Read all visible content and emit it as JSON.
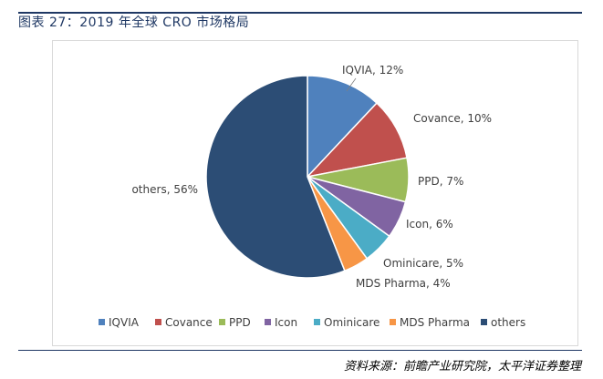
{
  "header": {
    "title": "图表 27：2019 年全球 CRO 市场格局"
  },
  "footer": {
    "source": "资料来源：前瞻产业研究院，太平洋证券整理"
  },
  "chart_data": {
    "type": "pie",
    "title": "",
    "slices": [
      {
        "name": "IQVIA",
        "value": 12,
        "label": "IQVIA, 12%",
        "color": "#4F81BD"
      },
      {
        "name": "Covance",
        "value": 10,
        "label": "Covance, 10%",
        "color": "#C0504D"
      },
      {
        "name": "PPD",
        "value": 7,
        "label": "PPD, 7%",
        "color": "#9BBB59"
      },
      {
        "name": "Icon",
        "value": 6,
        "label": "Icon, 6%",
        "color": "#8064A2"
      },
      {
        "name": "Ominicare",
        "value": 5,
        "label": "Ominicare, 5%",
        "color": "#4BACC6"
      },
      {
        "name": "MDS Pharma",
        "value": 4,
        "label": "MDS Pharma, 4%",
        "color": "#F79646"
      },
      {
        "name": "others",
        "value": 56,
        "label": "others, 56%",
        "color": "#2C4D75"
      }
    ],
    "legend": {
      "position": "bottom",
      "items": [
        "IQVIA",
        "Covance",
        "PPD",
        "Icon",
        "Ominicare",
        "MDS Pharma",
        "others"
      ]
    }
  }
}
